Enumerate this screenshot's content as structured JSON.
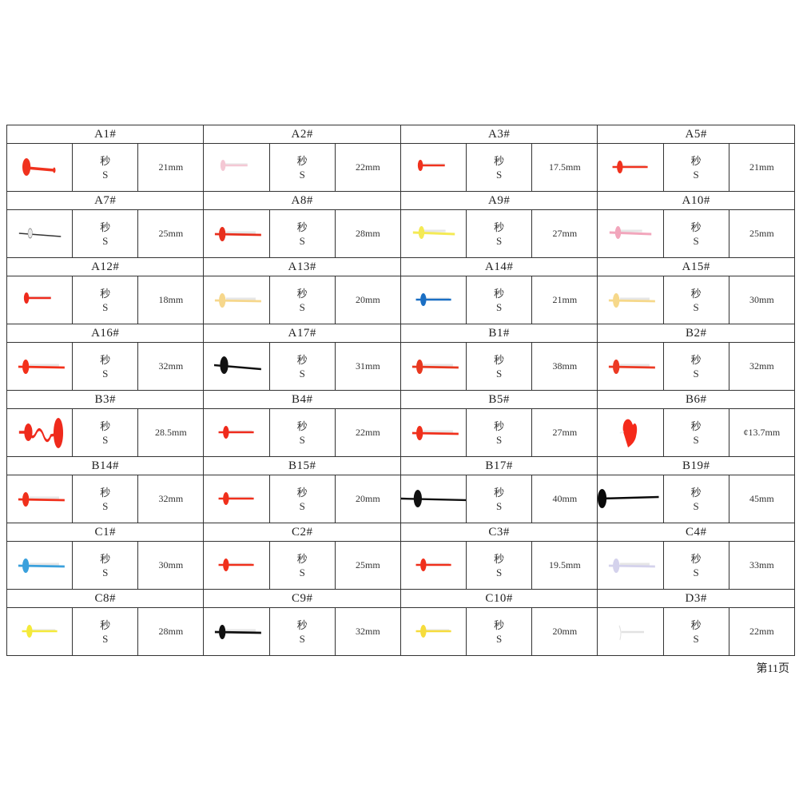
{
  "page": {
    "page_number_label": "第11页",
    "unit_label_top": "秒",
    "unit_label_bottom": "S"
  },
  "rows": [
    {
      "items": [
        {
          "code": "A1#",
          "size": "21mm",
          "color": "#f0321e",
          "shape": "round-tail-dot"
        },
        {
          "code": "A2#",
          "size": "22mm",
          "color": "#f4c8d4",
          "shape": "short"
        },
        {
          "code": "A3#",
          "size": "17.5mm",
          "color": "#f0321e",
          "shape": "short"
        },
        {
          "code": "A5#",
          "size": "21mm",
          "color": "#f0321e",
          "shape": "tail"
        }
      ]
    },
    {
      "items": [
        {
          "code": "A7#",
          "size": "25mm",
          "color": "#333333",
          "shape": "tail-long-silver"
        },
        {
          "code": "A8#",
          "size": "28mm",
          "color": "#e8301e",
          "shape": "tail-long"
        },
        {
          "code": "A9#",
          "size": "27mm",
          "color": "#f4ea55",
          "shape": "tail-taper"
        },
        {
          "code": "A10#",
          "size": "25mm",
          "color": "#f2a6bc",
          "shape": "tail-taper"
        }
      ]
    },
    {
      "items": [
        {
          "code": "A12#",
          "size": "18mm",
          "color": "#ee2a1c",
          "shape": "short"
        },
        {
          "code": "A13#",
          "size": "20mm",
          "color": "#f6d78c",
          "shape": "tail-long"
        },
        {
          "code": "A14#",
          "size": "21mm",
          "color": "#1a6fc4",
          "shape": "tail"
        },
        {
          "code": "A15#",
          "size": "30mm",
          "color": "#f6d88a",
          "shape": "tail-long"
        }
      ]
    },
    {
      "items": [
        {
          "code": "A16#",
          "size": "32mm",
          "color": "#f3301a",
          "shape": "tail-long"
        },
        {
          "code": "A17#",
          "size": "31mm",
          "color": "#111111",
          "shape": "tail-long-big"
        },
        {
          "code": "B1#",
          "size": "38mm",
          "color": "#e8381f",
          "shape": "tail-long"
        },
        {
          "code": "B2#",
          "size": "32mm",
          "color": "#ec3a24",
          "shape": "tail-long"
        }
      ]
    },
    {
      "items": [
        {
          "code": "B3#",
          "size": "28.5mm",
          "color": "#ef2a1c",
          "shape": "wavy"
        },
        {
          "code": "B4#",
          "size": "22mm",
          "color": "#ef2a1c",
          "shape": "tail"
        },
        {
          "code": "B5#",
          "size": "27mm",
          "color": "#f0301c",
          "shape": "tail-long"
        },
        {
          "code": "B6#",
          "size": "¢13.7mm",
          "color": "#f52a1a",
          "shape": "heart"
        }
      ]
    },
    {
      "items": [
        {
          "code": "B14#",
          "size": "32mm",
          "color": "#f0301c",
          "shape": "tail-long"
        },
        {
          "code": "B15#",
          "size": "20mm",
          "color": "#f0301c",
          "shape": "tail"
        },
        {
          "code": "B17#",
          "size": "40mm",
          "color": "#111111",
          "shape": "tail-full"
        },
        {
          "code": "B19#",
          "size": "45mm",
          "color": "#0a0a0a",
          "shape": "no-tail-long"
        }
      ]
    },
    {
      "items": [
        {
          "code": "C1#",
          "size": "30mm",
          "color": "#3aa0dc",
          "shape": "tail-long"
        },
        {
          "code": "C2#",
          "size": "25mm",
          "color": "#f0301c",
          "shape": "tail"
        },
        {
          "code": "C3#",
          "size": "19.5mm",
          "color": "#f0301c",
          "shape": "tail"
        },
        {
          "code": "C4#",
          "size": "33mm",
          "color": "#d4d2ec",
          "shape": "tail-long"
        }
      ]
    },
    {
      "items": [
        {
          "code": "C8#",
          "size": "28mm",
          "color": "#f4ea3a",
          "shape": "tail"
        },
        {
          "code": "C9#",
          "size": "32mm",
          "color": "#111111",
          "shape": "tail-long"
        },
        {
          "code": "C10#",
          "size": "20mm",
          "color": "#f6dc3c",
          "shape": "tail"
        },
        {
          "code": "D3#",
          "size": "22mm",
          "color": "#eeeeee",
          "shape": "fork"
        }
      ]
    }
  ]
}
